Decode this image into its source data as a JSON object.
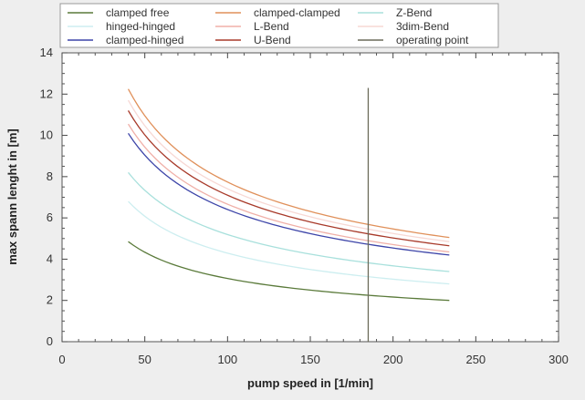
{
  "chart_data": {
    "type": "line",
    "title": "",
    "xlabel": "pump speed in [1/min]",
    "ylabel": "max spann lenght in [m]",
    "xlim": [
      0,
      300
    ],
    "ylim": [
      0,
      14
    ],
    "x_ticks": [
      "0",
      "50",
      "100",
      "150",
      "200",
      "250",
      "300"
    ],
    "y_ticks": [
      "0",
      "2",
      "4",
      "6",
      "8",
      "10",
      "12",
      "14"
    ],
    "grid": false,
    "legend_position": "top",
    "series": [
      {
        "name": "clamped free",
        "color": "#5a7a3a",
        "x": [
          40,
          234
        ],
        "y": [
          4.85,
          2.0
        ]
      },
      {
        "name": "hinged-hinged",
        "color": "#cdeef0",
        "x": [
          40,
          234
        ],
        "y": [
          6.8,
          2.8
        ]
      },
      {
        "name": "clamped-hinged",
        "color": "#3c44a8",
        "x": [
          40,
          234
        ],
        "y": [
          10.1,
          4.2
        ]
      },
      {
        "name": "clamped-clamped",
        "color": "#e0905a",
        "x": [
          40,
          234
        ],
        "y": [
          12.25,
          5.05
        ]
      },
      {
        "name": "L-Bend",
        "color": "#f0b0a8",
        "x": [
          40,
          234
        ],
        "y": [
          10.55,
          4.35
        ]
      },
      {
        "name": "U-Bend",
        "color": "#a83a2a",
        "x": [
          40,
          234
        ],
        "y": [
          11.2,
          4.65
        ]
      },
      {
        "name": "Z-Bend",
        "color": "#a8e0dc",
        "x": [
          40,
          234
        ],
        "y": [
          8.2,
          3.4
        ]
      },
      {
        "name": "3dim-Bend",
        "color": "#f7d8d4",
        "x": [
          40,
          234
        ],
        "y": [
          11.7,
          4.85
        ]
      },
      {
        "name": "operating point",
        "color": "#6b6b5a",
        "x": [
          185,
          185
        ],
        "y": [
          0,
          12.3
        ]
      }
    ],
    "legend_entries": [
      {
        "name": "clamped free",
        "color": "#5a7a3a"
      },
      {
        "name": "hinged-hinged",
        "color": "#cdeef0"
      },
      {
        "name": "clamped-hinged",
        "color": "#3c44a8"
      },
      {
        "name": "clamped-clamped",
        "color": "#e0905a"
      },
      {
        "name": "L-Bend",
        "color": "#f0b0a8"
      },
      {
        "name": "U-Bend",
        "color": "#a83a2a"
      },
      {
        "name": "Z-Bend",
        "color": "#a8e0dc"
      },
      {
        "name": "3dim-Bend",
        "color": "#f7d8d4"
      },
      {
        "name": "operating point",
        "color": "#6b6b5a"
      }
    ]
  }
}
